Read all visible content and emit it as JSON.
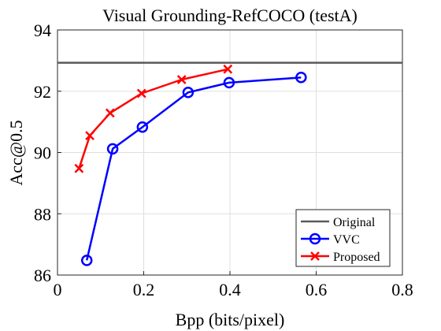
{
  "chart_data": {
    "type": "line",
    "title": "Visual Grounding-RefCOCO (testA)",
    "xlabel": "Bpp (bits/pixel)",
    "ylabel": "Acc@0.5",
    "xlim": [
      0,
      0.8
    ],
    "ylim": [
      86,
      94
    ],
    "xticks": [
      0,
      0.2,
      0.4,
      0.6,
      0.8
    ],
    "xtick_labels": [
      "0",
      "0.2",
      "0.4",
      "0.6",
      "0.8"
    ],
    "yticks": [
      86,
      88,
      90,
      92,
      94
    ],
    "ytick_labels": [
      "86",
      "88",
      "90",
      "92",
      "94"
    ],
    "grid": true,
    "legend_position": "bottom-right",
    "series": [
      {
        "name": "Original",
        "color": "#5a5a5a",
        "marker": "none",
        "x": [
          0,
          0.8
        ],
        "y": [
          92.93,
          92.93
        ]
      },
      {
        "name": "VVC",
        "color": "#0000ff",
        "marker": "circle",
        "x": [
          0.068,
          0.128,
          0.197,
          0.303,
          0.398,
          0.565
        ],
        "y": [
          86.48,
          90.12,
          90.83,
          91.96,
          92.28,
          92.45
        ]
      },
      {
        "name": "Proposed",
        "color": "#ff0000",
        "marker": "x",
        "x": [
          0.05,
          0.075,
          0.122,
          0.195,
          0.288,
          0.395
        ],
        "y": [
          89.48,
          90.55,
          91.29,
          91.93,
          92.38,
          92.72
        ]
      }
    ]
  }
}
